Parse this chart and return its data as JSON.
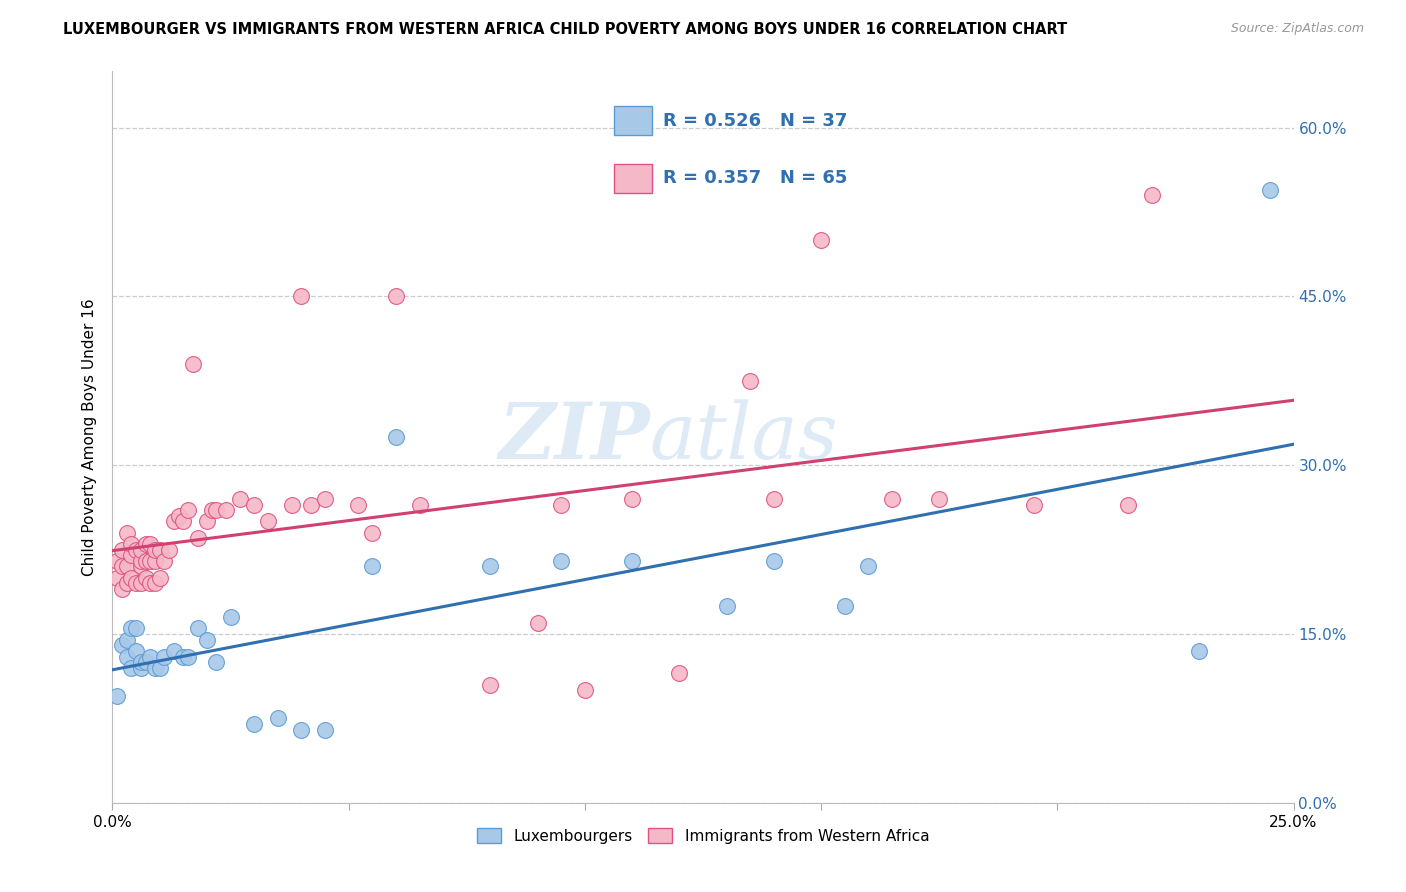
{
  "title": "LUXEMBOURGER VS IMMIGRANTS FROM WESTERN AFRICA CHILD POVERTY AMONG BOYS UNDER 16 CORRELATION CHART",
  "source": "Source: ZipAtlas.com",
  "ylabel": "Child Poverty Among Boys Under 16",
  "xlim": [
    0.0,
    0.25
  ],
  "ylim": [
    0.0,
    0.65
  ],
  "yaxis_ticks": [
    0.0,
    0.15,
    0.3,
    0.45,
    0.6
  ],
  "blue_color": "#a8c8e8",
  "blue_edge_color": "#5b9bd5",
  "pink_color": "#f4b8c8",
  "pink_edge_color": "#e05080",
  "blue_line_color": "#3070b0",
  "pink_line_color": "#d04070",
  "legend_text_color": "#3070b0",
  "watermark_color": "#c8dff0",
  "blue_points_x": [
    0.001,
    0.002,
    0.003,
    0.003,
    0.004,
    0.004,
    0.005,
    0.005,
    0.006,
    0.006,
    0.007,
    0.008,
    0.009,
    0.01,
    0.011,
    0.013,
    0.015,
    0.016,
    0.018,
    0.02,
    0.022,
    0.025,
    0.03,
    0.035,
    0.04,
    0.045,
    0.055,
    0.06,
    0.08,
    0.095,
    0.11,
    0.13,
    0.14,
    0.155,
    0.16,
    0.23,
    0.245
  ],
  "blue_points_y": [
    0.095,
    0.14,
    0.13,
    0.145,
    0.12,
    0.155,
    0.135,
    0.155,
    0.12,
    0.125,
    0.125,
    0.13,
    0.12,
    0.12,
    0.13,
    0.135,
    0.13,
    0.13,
    0.155,
    0.145,
    0.125,
    0.165,
    0.07,
    0.075,
    0.065,
    0.065,
    0.21,
    0.325,
    0.21,
    0.215,
    0.215,
    0.175,
    0.215,
    0.175,
    0.21,
    0.135,
    0.545
  ],
  "pink_points_x": [
    0.001,
    0.001,
    0.002,
    0.002,
    0.002,
    0.003,
    0.003,
    0.003,
    0.004,
    0.004,
    0.004,
    0.005,
    0.005,
    0.006,
    0.006,
    0.006,
    0.006,
    0.007,
    0.007,
    0.007,
    0.008,
    0.008,
    0.008,
    0.009,
    0.009,
    0.009,
    0.01,
    0.01,
    0.011,
    0.012,
    0.013,
    0.014,
    0.015,
    0.016,
    0.017,
    0.018,
    0.02,
    0.021,
    0.022,
    0.024,
    0.027,
    0.03,
    0.033,
    0.038,
    0.04,
    0.042,
    0.045,
    0.052,
    0.055,
    0.06,
    0.065,
    0.08,
    0.09,
    0.095,
    0.1,
    0.11,
    0.12,
    0.135,
    0.14,
    0.15,
    0.165,
    0.175,
    0.195,
    0.215,
    0.22
  ],
  "pink_points_y": [
    0.2,
    0.215,
    0.19,
    0.21,
    0.225,
    0.195,
    0.21,
    0.24,
    0.2,
    0.22,
    0.23,
    0.195,
    0.225,
    0.195,
    0.21,
    0.215,
    0.225,
    0.2,
    0.215,
    0.23,
    0.195,
    0.215,
    0.23,
    0.195,
    0.215,
    0.225,
    0.2,
    0.225,
    0.215,
    0.225,
    0.25,
    0.255,
    0.25,
    0.26,
    0.39,
    0.235,
    0.25,
    0.26,
    0.26,
    0.26,
    0.27,
    0.265,
    0.25,
    0.265,
    0.45,
    0.265,
    0.27,
    0.265,
    0.24,
    0.45,
    0.265,
    0.105,
    0.16,
    0.265,
    0.1,
    0.27,
    0.115,
    0.375,
    0.27,
    0.5,
    0.27,
    0.27,
    0.265,
    0.265,
    0.54
  ]
}
